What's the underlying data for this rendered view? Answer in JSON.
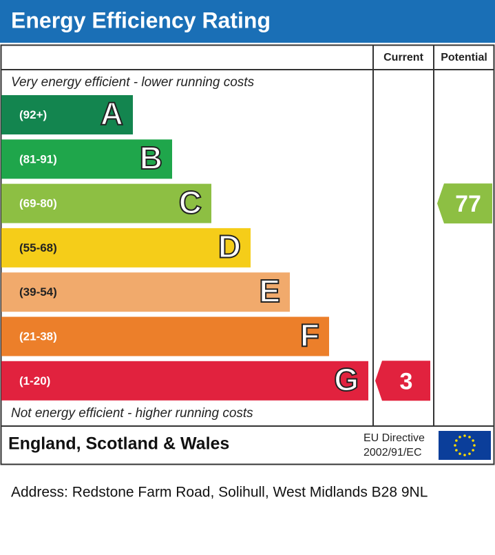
{
  "title": "Energy Efficiency Rating",
  "columns": {
    "current": "Current",
    "potential": "Potential"
  },
  "top_note": "Very energy efficient - lower running costs",
  "bottom_note": "Not energy efficient - higher running costs",
  "bands": [
    {
      "range": "(92+)",
      "letter": "A",
      "color": "#13854f"
    },
    {
      "range": "(81-91)",
      "letter": "B",
      "color": "#1fa64b"
    },
    {
      "range": "(69-80)",
      "letter": "C",
      "color": "#8dbf43"
    },
    {
      "range": "(55-68)",
      "letter": "D",
      "color": "#f5cd19"
    },
    {
      "range": "(39-54)",
      "letter": "E",
      "color": "#f1aa6c"
    },
    {
      "range": "(21-38)",
      "letter": "F",
      "color": "#ec7f2a"
    },
    {
      "range": "(1-20)",
      "letter": "G",
      "color": "#e1223e"
    }
  ],
  "current": 3,
  "potential": 77,
  "footer": {
    "region": "England, Scotland & Wales",
    "directive_line1": "EU Directive",
    "directive_line2": "2002/91/EC"
  },
  "address": "Address: Redstone Farm Road, Solihull, West Midlands B28 9NL"
}
